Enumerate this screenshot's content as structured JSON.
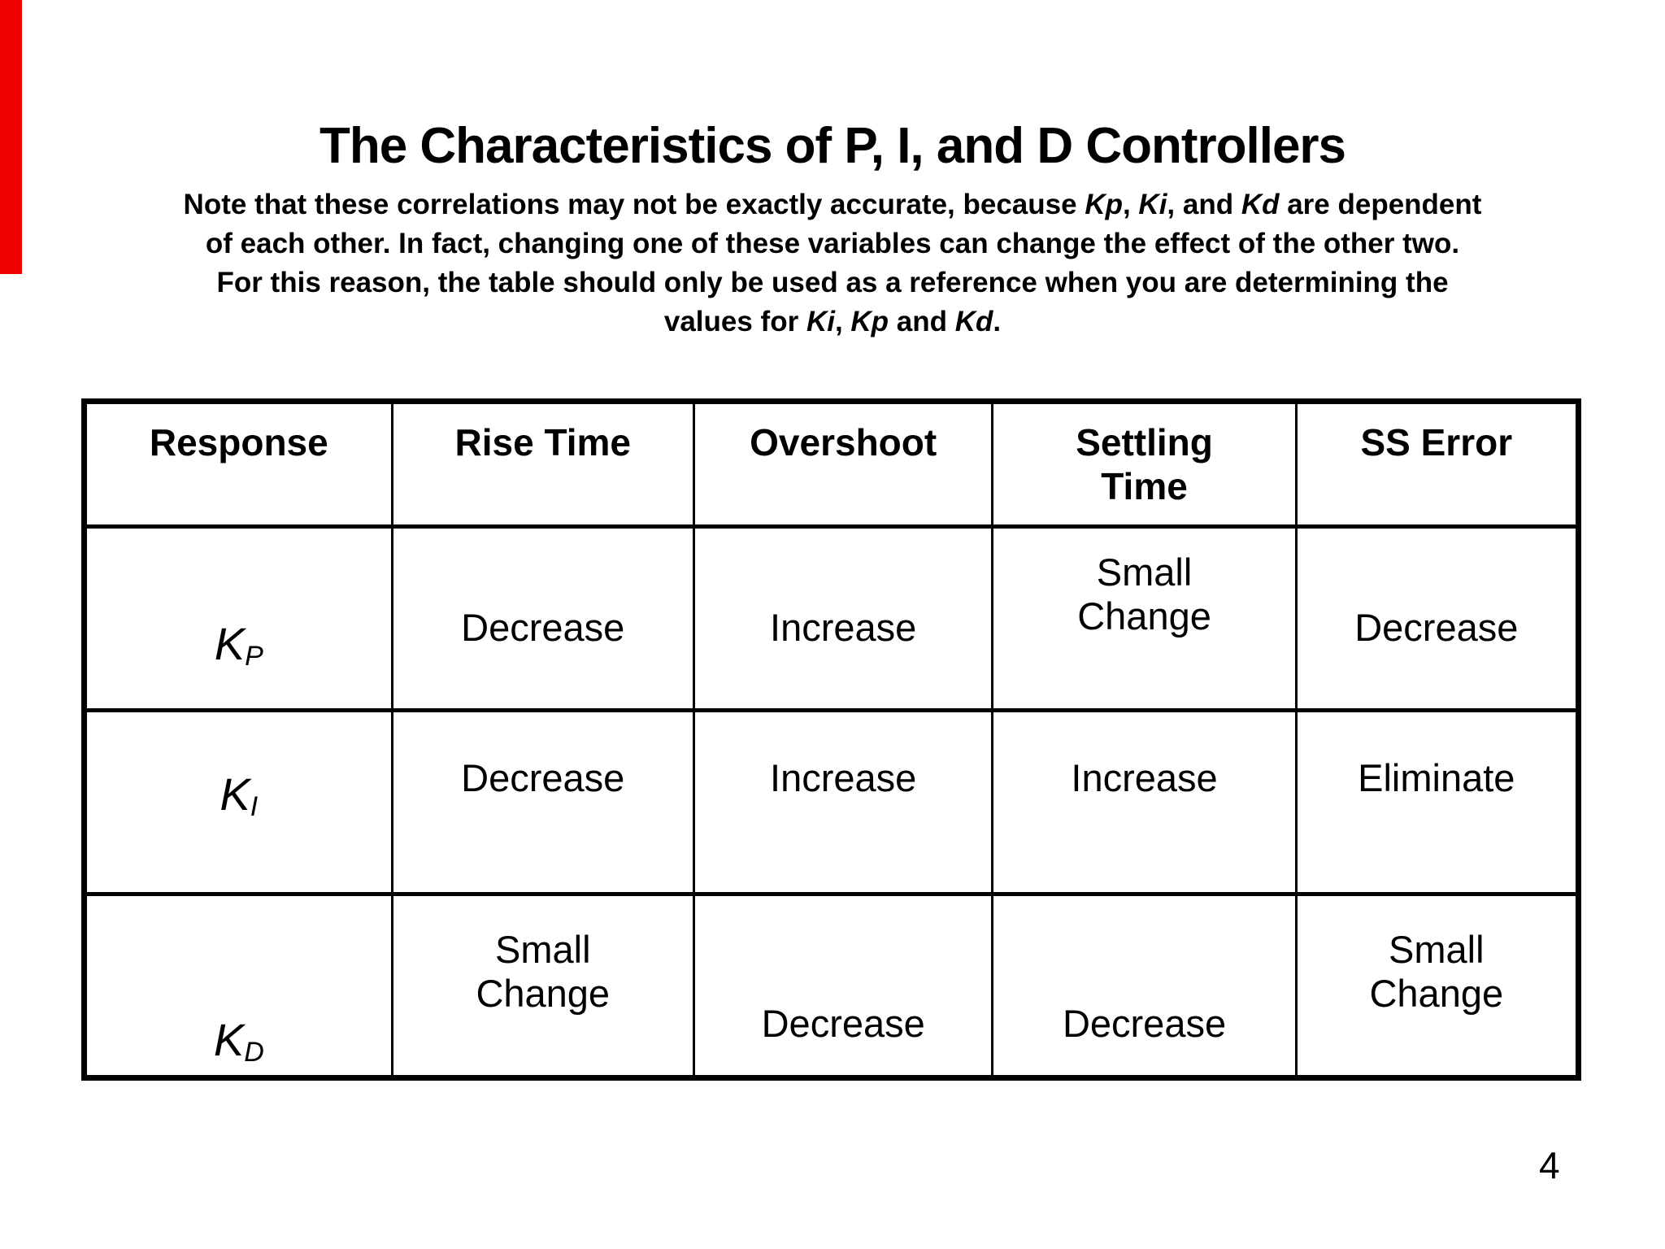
{
  "slide": {
    "title": "The Characteristics of P, I, and D Controllers",
    "page_number": "4",
    "accent_bar_color": "#ee0000"
  },
  "note": {
    "lines": [
      {
        "segments": [
          {
            "t": "Note that these correlations may not be exactly accurate, because "
          },
          {
            "t": "Kp",
            "i": true
          },
          {
            "t": ", "
          },
          {
            "t": "Ki",
            "i": true
          },
          {
            "t": ", and "
          },
          {
            "t": "Kd",
            "i": true
          },
          {
            "t": " are dependent"
          }
        ]
      },
      {
        "segments": [
          {
            "t": "of each other. In fact, changing one of these variables can change the effect of the other two."
          }
        ]
      },
      {
        "segments": [
          {
            "t": "For this reason, the table should only be used as a reference when you are determining the"
          }
        ]
      },
      {
        "segments": [
          {
            "t": "values for "
          },
          {
            "t": "Ki",
            "i": true
          },
          {
            "t": ", "
          },
          {
            "t": "Kp",
            "i": true
          },
          {
            "t": " and "
          },
          {
            "t": "Kd",
            "i": true
          },
          {
            "t": "."
          }
        ]
      }
    ]
  },
  "table": {
    "headers": [
      "Response",
      "Rise Time",
      "Overshoot",
      "Settling\nTime",
      "SS Error"
    ],
    "rows": [
      {
        "label": {
          "base": "K",
          "sub": "P"
        },
        "cells": [
          "Decrease",
          "Increase",
          "Small\nChange",
          "Decrease"
        ]
      },
      {
        "label": {
          "base": "K",
          "sub": "I"
        },
        "cells": [
          "Decrease",
          "Increase",
          "Increase",
          "Eliminate"
        ]
      },
      {
        "label": {
          "base": "K",
          "sub": "D"
        },
        "cells": [
          "Small\nChange",
          "Decrease",
          "Decrease",
          "Small\nChange"
        ]
      }
    ]
  }
}
